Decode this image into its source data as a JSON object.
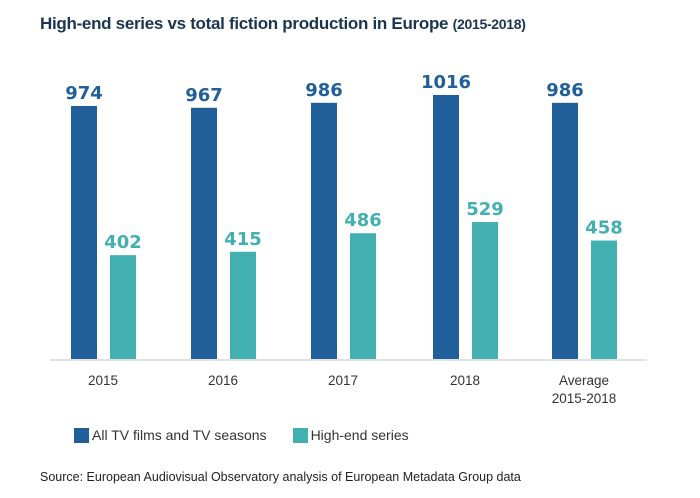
{
  "chart_data": {
    "type": "bar",
    "title": "High-end series vs total fiction production in Europe",
    "subtitle": "(2015-2018)",
    "categories": [
      "2015",
      "2016",
      "2017",
      "2018",
      "Average\n2015-2018"
    ],
    "series": [
      {
        "name": "All TV films and TV seasons",
        "color": "#215f9a",
        "values": [
          974,
          967,
          986,
          1016,
          986
        ]
      },
      {
        "name": "High-end series",
        "color": "#42b0b1",
        "values": [
          402,
          415,
          486,
          529,
          458
        ]
      }
    ],
    "xlabel": "",
    "ylabel": "",
    "ylim": [
      0,
      1016
    ],
    "grid": false,
    "legend_position": "bottom-left",
    "data_labels": true
  },
  "source": "Source: European Audiovisual Observatory analysis of European Metadata Group data"
}
